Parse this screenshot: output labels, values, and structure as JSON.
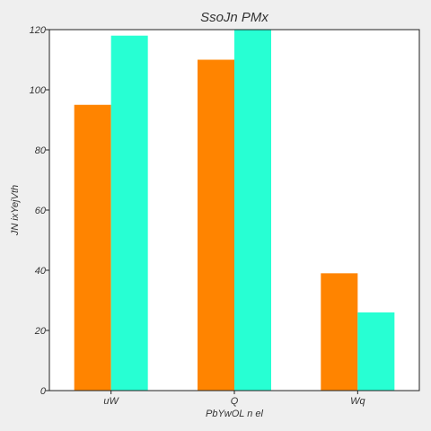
{
  "chart_data": {
    "type": "bar",
    "title": "SsoJn  PMx",
    "xlabel": "PbYwOL n el",
    "ylabel": "JN ixYejVth",
    "categories": [
      "uW",
      "Q",
      "Wq"
    ],
    "series": [
      {
        "values": [
          95,
          110,
          39
        ],
        "color": "#ff8400"
      },
      {
        "values": [
          118,
          120,
          26
        ],
        "color": "#27ffd3"
      }
    ],
    "ylim": [
      0,
      120
    ],
    "yticks": [
      0,
      20,
      40,
      60,
      80,
      100,
      120
    ],
    "grid": false,
    "legend": "none"
  }
}
